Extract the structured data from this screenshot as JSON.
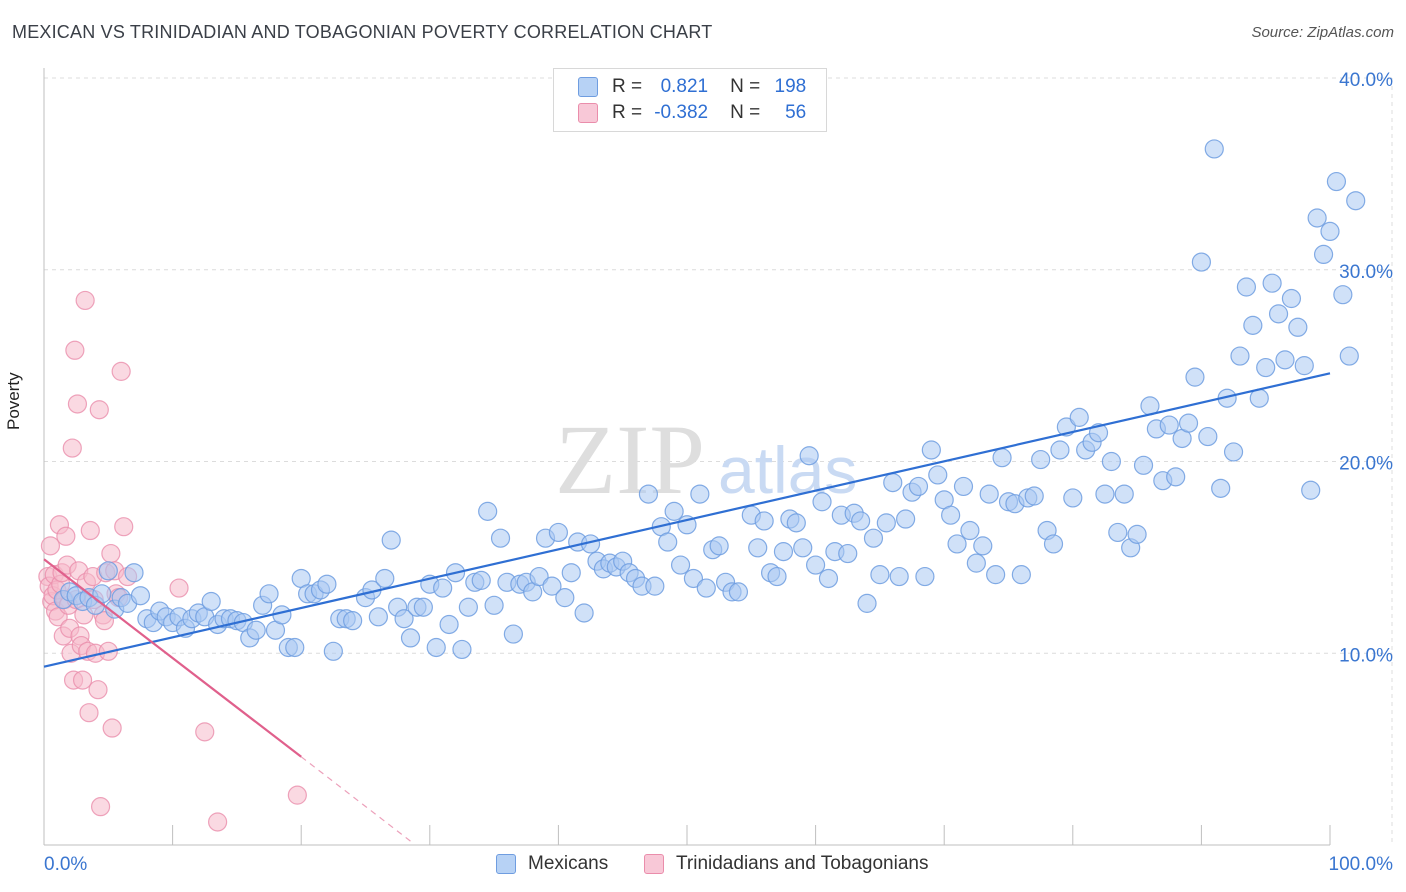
{
  "title": "MEXICAN VS TRINIDADIAN AND TOBAGONIAN POVERTY CORRELATION CHART",
  "source": "Source: ZipAtlas.com",
  "watermark": {
    "zip": "ZIP",
    "atlas": "atlas"
  },
  "legend": {
    "r_label": "R =",
    "n_label": "N =",
    "series": [
      {
        "name": "Mexicans",
        "r": "0.821",
        "n": "198"
      },
      {
        "name": "Trinidadians and Tobagonians",
        "r": "-0.382",
        "n": "56"
      }
    ]
  },
  "colors": {
    "blue_fill": "#a9c8f2",
    "blue_stroke": "#6f9de0",
    "blue_line": "#2f6fd3",
    "pink_fill": "#f6b9cb",
    "pink_stroke": "#ea8dab",
    "pink_line": "#e0608c",
    "axis_text": "#3a76d0",
    "grid": "#dcdcdc"
  },
  "chart_data": {
    "type": "scatter",
    "title": "MEXICAN VS TRINIDADIAN AND TOBAGONIAN POVERTY CORRELATION CHART",
    "xlabel": "",
    "ylabel": "Poverty",
    "xlim": [
      0,
      100
    ],
    "ylim": [
      0,
      40
    ],
    "x_tick_labels": [
      "0.0%",
      "100.0%"
    ],
    "y_ticks": [
      10,
      20,
      30,
      40
    ],
    "y_tick_labels": [
      "10.0%",
      "20.0%",
      "30.0%",
      "40.0%"
    ],
    "series": [
      {
        "name": "Mexicans",
        "trend": [
          [
            0,
            9.3
          ],
          [
            100,
            24.6
          ]
        ],
        "points": [
          [
            1.5,
            12.8
          ],
          [
            2,
            13.2
          ],
          [
            2.5,
            13.0
          ],
          [
            3,
            12.7
          ],
          [
            3.5,
            12.9
          ],
          [
            4,
            12.5
          ],
          [
            4.5,
            13.1
          ],
          [
            5,
            14.3
          ],
          [
            5.5,
            12.3
          ],
          [
            6,
            12.9
          ],
          [
            6.5,
            12.6
          ],
          [
            7,
            14.2
          ],
          [
            7.5,
            13.0
          ],
          [
            8,
            11.8
          ],
          [
            8.5,
            11.6
          ],
          [
            9,
            12.2
          ],
          [
            9.5,
            11.9
          ],
          [
            10,
            11.6
          ],
          [
            10.5,
            11.9
          ],
          [
            11,
            11.3
          ],
          [
            11.5,
            11.8
          ],
          [
            12,
            12.1
          ],
          [
            12.5,
            11.9
          ],
          [
            13,
            12.7
          ],
          [
            13.5,
            11.5
          ],
          [
            14,
            11.8
          ],
          [
            14.5,
            11.8
          ],
          [
            15,
            11.7
          ],
          [
            15.5,
            11.6
          ],
          [
            16,
            10.8
          ],
          [
            16.5,
            11.2
          ],
          [
            17,
            12.5
          ],
          [
            17.5,
            13.1
          ],
          [
            18,
            11.2
          ],
          [
            18.5,
            12.0
          ],
          [
            19,
            10.3
          ],
          [
            19.5,
            10.3
          ],
          [
            20,
            13.9
          ],
          [
            20.5,
            13.1
          ],
          [
            21,
            13.1
          ],
          [
            21.5,
            13.3
          ],
          [
            22,
            13.6
          ],
          [
            22.5,
            10.1
          ],
          [
            23,
            11.8
          ],
          [
            23.5,
            11.8
          ],
          [
            24,
            11.7
          ],
          [
            25,
            12.9
          ],
          [
            25.5,
            13.3
          ],
          [
            26,
            11.9
          ],
          [
            26.5,
            13.9
          ],
          [
            27,
            15.9
          ],
          [
            27.5,
            12.4
          ],
          [
            28,
            11.8
          ],
          [
            28.5,
            10.8
          ],
          [
            29,
            12.4
          ],
          [
            29.5,
            12.4
          ],
          [
            30,
            13.6
          ],
          [
            30.5,
            10.3
          ],
          [
            31,
            13.4
          ],
          [
            31.5,
            11.5
          ],
          [
            32,
            14.2
          ],
          [
            32.5,
            10.2
          ],
          [
            33,
            12.4
          ],
          [
            33.5,
            13.7
          ],
          [
            34,
            13.8
          ],
          [
            34.5,
            17.4
          ],
          [
            35,
            12.5
          ],
          [
            35.5,
            16.0
          ],
          [
            36,
            13.7
          ],
          [
            36.5,
            11.0
          ],
          [
            37,
            13.6
          ],
          [
            37.5,
            13.7
          ],
          [
            38,
            13.2
          ],
          [
            38.5,
            14.0
          ],
          [
            39,
            16.0
          ],
          [
            39.5,
            13.5
          ],
          [
            40,
            16.3
          ],
          [
            40.5,
            12.9
          ],
          [
            41,
            14.2
          ],
          [
            41.5,
            15.8
          ],
          [
            42,
            12.1
          ],
          [
            42.5,
            15.7
          ],
          [
            43,
            14.8
          ],
          [
            43.5,
            14.4
          ],
          [
            44,
            14.7
          ],
          [
            44.5,
            14.5
          ],
          [
            45,
            14.8
          ],
          [
            45.5,
            14.2
          ],
          [
            46,
            13.9
          ],
          [
            46.5,
            13.5
          ],
          [
            47,
            18.3
          ],
          [
            47.5,
            13.5
          ],
          [
            48,
            16.6
          ],
          [
            48.5,
            15.8
          ],
          [
            49,
            17.4
          ],
          [
            49.5,
            14.6
          ],
          [
            50,
            16.7
          ],
          [
            50.5,
            13.9
          ],
          [
            51,
            18.3
          ],
          [
            51.5,
            13.4
          ],
          [
            52,
            15.4
          ],
          [
            52.5,
            15.6
          ],
          [
            53,
            13.7
          ],
          [
            53.5,
            13.2
          ],
          [
            54,
            13.2
          ],
          [
            55,
            17.2
          ],
          [
            55.5,
            15.5
          ],
          [
            56,
            16.9
          ],
          [
            56.5,
            14.2
          ],
          [
            57,
            14.0
          ],
          [
            57.5,
            15.3
          ],
          [
            58,
            17.0
          ],
          [
            58.5,
            16.8
          ],
          [
            59,
            15.5
          ],
          [
            59.5,
            20.3
          ],
          [
            60,
            14.6
          ],
          [
            60.5,
            17.9
          ],
          [
            61,
            13.9
          ],
          [
            61.5,
            15.3
          ],
          [
            62,
            17.2
          ],
          [
            62.5,
            15.2
          ],
          [
            63,
            17.3
          ],
          [
            63.5,
            16.9
          ],
          [
            64,
            12.6
          ],
          [
            64.5,
            16.0
          ],
          [
            65,
            14.1
          ],
          [
            65.5,
            16.8
          ],
          [
            66,
            18.9
          ],
          [
            66.5,
            14.0
          ],
          [
            67,
            17.0
          ],
          [
            67.5,
            18.4
          ],
          [
            68,
            18.7
          ],
          [
            68.5,
            14.0
          ],
          [
            69,
            20.6
          ],
          [
            69.5,
            19.3
          ],
          [
            70,
            18.0
          ],
          [
            70.5,
            17.2
          ],
          [
            71,
            15.7
          ],
          [
            71.5,
            18.7
          ],
          [
            72,
            16.4
          ],
          [
            72.5,
            14.7
          ],
          [
            73,
            15.6
          ],
          [
            73.5,
            18.3
          ],
          [
            74,
            14.1
          ],
          [
            74.5,
            20.2
          ],
          [
            75,
            17.9
          ],
          [
            75.5,
            17.8
          ],
          [
            76,
            14.1
          ],
          [
            76.5,
            18.1
          ],
          [
            77,
            18.2
          ],
          [
            77.5,
            20.1
          ],
          [
            78,
            16.4
          ],
          [
            78.5,
            15.7
          ],
          [
            79,
            20.6
          ],
          [
            79.5,
            21.8
          ],
          [
            80,
            18.1
          ],
          [
            80.5,
            22.3
          ],
          [
            81,
            20.6
          ],
          [
            81.5,
            21.0
          ],
          [
            82,
            21.5
          ],
          [
            82.5,
            18.3
          ],
          [
            83,
            20.0
          ],
          [
            83.5,
            16.3
          ],
          [
            84,
            18.3
          ],
          [
            84.5,
            15.5
          ],
          [
            85,
            16.2
          ],
          [
            85.5,
            19.8
          ],
          [
            86,
            22.9
          ],
          [
            86.5,
            21.7
          ],
          [
            87,
            19.0
          ],
          [
            87.5,
            21.9
          ],
          [
            88,
            19.2
          ],
          [
            88.5,
            21.2
          ],
          [
            89,
            22.0
          ],
          [
            89.5,
            24.4
          ],
          [
            90,
            30.4
          ],
          [
            90.5,
            21.3
          ],
          [
            91,
            36.3
          ],
          [
            91.5,
            18.6
          ],
          [
            92,
            23.3
          ],
          [
            92.5,
            20.5
          ],
          [
            93,
            25.5
          ],
          [
            93.5,
            29.1
          ],
          [
            94,
            27.1
          ],
          [
            94.5,
            23.3
          ],
          [
            95,
            24.9
          ],
          [
            95.5,
            29.3
          ],
          [
            96,
            27.7
          ],
          [
            96.5,
            25.3
          ],
          [
            97,
            28.5
          ],
          [
            97.5,
            27.0
          ],
          [
            98,
            25.0
          ],
          [
            98.5,
            18.5
          ],
          [
            99,
            32.7
          ],
          [
            99.5,
            30.8
          ],
          [
            100,
            32.0
          ],
          [
            100.5,
            34.6
          ],
          [
            101,
            28.7
          ],
          [
            101.5,
            25.5
          ],
          [
            102,
            33.6
          ]
        ]
      },
      {
        "name": "Trinidadians and Tobagonians",
        "trend": [
          [
            0,
            14.9
          ],
          [
            20,
            4.6
          ]
        ],
        "trend_dashed": [
          [
            20,
            4.6
          ],
          [
            28.5,
            0.2
          ]
        ],
        "points": [
          [
            0.3,
            14.0
          ],
          [
            0.4,
            13.5
          ],
          [
            0.5,
            15.6
          ],
          [
            0.6,
            12.7
          ],
          [
            0.7,
            13.0
          ],
          [
            0.8,
            14.1
          ],
          [
            0.9,
            12.2
          ],
          [
            1.0,
            13.3
          ],
          [
            1.1,
            11.9
          ],
          [
            1.2,
            16.7
          ],
          [
            1.3,
            13.6
          ],
          [
            1.4,
            14.2
          ],
          [
            1.5,
            10.9
          ],
          [
            1.6,
            12.8
          ],
          [
            1.7,
            16.1
          ],
          [
            1.8,
            14.6
          ],
          [
            1.9,
            12.5
          ],
          [
            2.0,
            11.3
          ],
          [
            2.1,
            10.0
          ],
          [
            2.2,
            20.7
          ],
          [
            2.3,
            8.6
          ],
          [
            2.4,
            25.8
          ],
          [
            2.5,
            12.8
          ],
          [
            2.6,
            23.0
          ],
          [
            2.7,
            14.3
          ],
          [
            2.8,
            10.9
          ],
          [
            2.9,
            10.4
          ],
          [
            3.0,
            8.6
          ],
          [
            3.1,
            12.0
          ],
          [
            3.2,
            28.4
          ],
          [
            3.3,
            13.7
          ],
          [
            3.4,
            10.1
          ],
          [
            3.5,
            6.9
          ],
          [
            3.6,
            16.4
          ],
          [
            3.8,
            14.0
          ],
          [
            3.9,
            12.8
          ],
          [
            4.0,
            10.0
          ],
          [
            4.2,
            8.1
          ],
          [
            4.3,
            22.7
          ],
          [
            4.4,
            2.0
          ],
          [
            4.6,
            12.0
          ],
          [
            4.7,
            11.7
          ],
          [
            4.8,
            14.2
          ],
          [
            5.0,
            10.1
          ],
          [
            5.2,
            15.2
          ],
          [
            5.3,
            6.1
          ],
          [
            5.5,
            14.3
          ],
          [
            5.6,
            13.1
          ],
          [
            5.8,
            12.9
          ],
          [
            6.0,
            24.7
          ],
          [
            6.2,
            16.6
          ],
          [
            6.5,
            14.0
          ],
          [
            10.5,
            13.4
          ],
          [
            12.5,
            5.9
          ],
          [
            13.5,
            1.2
          ],
          [
            19.7,
            2.6
          ]
        ]
      }
    ]
  }
}
